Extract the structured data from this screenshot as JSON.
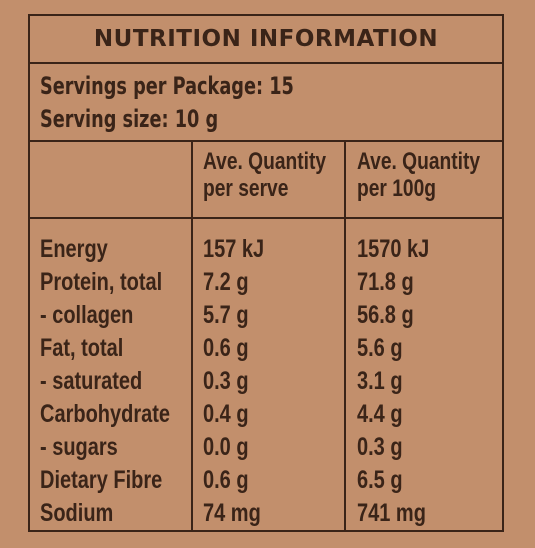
{
  "title": "NUTRITION INFORMATION",
  "servings_per_package": "Servings per Package: 15",
  "serving_size": "Serving size: 10 g",
  "columns": {
    "per_serve_line1": "Ave. Quantity",
    "per_serve_line2": "per serve",
    "per_100g_line1": "Ave. Quantity",
    "per_100g_line2": "per 100g"
  },
  "rows": [
    {
      "name": "Energy",
      "serve": "157 kJ",
      "per100": "1570 kJ"
    },
    {
      "name": "Protein, total",
      "serve": "7.2 g",
      "per100": "71.8 g"
    },
    {
      "name": "- collagen",
      "serve": "5.7 g",
      "per100": "56.8 g"
    },
    {
      "name": "Fat, total",
      "serve": "0.6 g",
      "per100": "5.6 g"
    },
    {
      "name": "- saturated",
      "serve": "0.3 g",
      "per100": "3.1 g"
    },
    {
      "name": "Carbohydrate",
      "serve": "0.4 g",
      "per100": "4.4 g"
    },
    {
      "name": "- sugars",
      "serve": "0.0 g",
      "per100": "0.3 g"
    },
    {
      "name": "Dietary Fibre",
      "serve": "0.6 g",
      "per100": "6.5 g"
    },
    {
      "name": "Sodium",
      "serve": "74 mg",
      "per100": "741 mg"
    }
  ],
  "colors": {
    "background": "#c28f6c",
    "ink": "#3a2418"
  }
}
